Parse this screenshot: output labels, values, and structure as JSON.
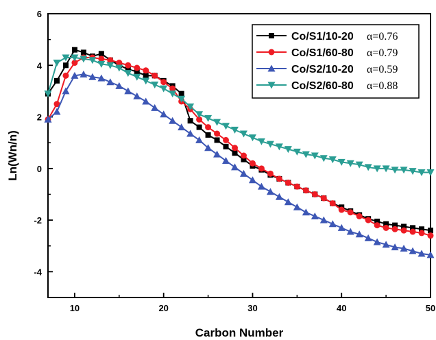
{
  "chart_data": {
    "type": "line",
    "title": "",
    "xlabel": "Carbon Number",
    "ylabel": "Ln(Wn/n)",
    "xlim": [
      7,
      50
    ],
    "ylim": [
      -5,
      6
    ],
    "xticks": [
      10,
      20,
      30,
      40,
      50
    ],
    "yticks": [
      -4,
      -2,
      0,
      2,
      4,
      6
    ],
    "grid": false,
    "legend_position": "top-right",
    "x": [
      7,
      8,
      9,
      10,
      11,
      12,
      13,
      14,
      15,
      16,
      17,
      18,
      19,
      20,
      21,
      22,
      23,
      24,
      25,
      26,
      27,
      28,
      29,
      30,
      31,
      32,
      33,
      34,
      35,
      36,
      37,
      38,
      39,
      40,
      41,
      42,
      43,
      44,
      45,
      46,
      47,
      48,
      49,
      50
    ],
    "series": [
      {
        "name": "Co/S1/10-20",
        "alpha": "α=0.76",
        "color": "#000000",
        "marker": "square",
        "values": [
          2.9,
          3.4,
          4.0,
          4.6,
          4.5,
          4.35,
          4.45,
          4.2,
          4.0,
          3.85,
          3.75,
          3.6,
          3.6,
          3.4,
          3.2,
          2.9,
          1.85,
          1.6,
          1.3,
          1.1,
          0.85,
          0.6,
          0.35,
          0.1,
          -0.05,
          -0.25,
          -0.4,
          -0.55,
          -0.7,
          -0.85,
          -1.0,
          -1.15,
          -1.35,
          -1.5,
          -1.65,
          -1.8,
          -1.95,
          -2.05,
          -2.15,
          -2.2,
          -2.25,
          -2.3,
          -2.35,
          -2.4
        ]
      },
      {
        "name": "Co/S1/60-80",
        "alpha": "α=0.79",
        "color": "#ee1c24",
        "marker": "circle",
        "values": [
          1.9,
          2.5,
          3.6,
          4.1,
          4.3,
          4.3,
          4.25,
          4.2,
          4.1,
          4.0,
          3.9,
          3.8,
          3.6,
          3.35,
          3.1,
          2.6,
          2.3,
          1.9,
          1.6,
          1.35,
          1.1,
          0.8,
          0.5,
          0.2,
          0.0,
          -0.2,
          -0.4,
          -0.55,
          -0.7,
          -0.85,
          -1.0,
          -1.15,
          -1.35,
          -1.6,
          -1.7,
          -1.85,
          -2.0,
          -2.2,
          -2.3,
          -2.35,
          -2.4,
          -2.45,
          -2.5,
          -2.6
        ]
      },
      {
        "name": "Co/S2/10-20",
        "alpha": "α=0.59",
        "color": "#3d57b5",
        "marker": "triangle-up",
        "values": [
          1.9,
          2.2,
          3.0,
          3.6,
          3.65,
          3.55,
          3.5,
          3.35,
          3.2,
          3.0,
          2.8,
          2.6,
          2.35,
          2.1,
          1.85,
          1.6,
          1.35,
          1.1,
          0.8,
          0.55,
          0.3,
          0.05,
          -0.2,
          -0.45,
          -0.7,
          -0.9,
          -1.1,
          -1.3,
          -1.5,
          -1.7,
          -1.85,
          -2.0,
          -2.15,
          -2.3,
          -2.45,
          -2.55,
          -2.7,
          -2.85,
          -2.95,
          -3.05,
          -3.1,
          -3.2,
          -3.3,
          -3.35
        ]
      },
      {
        "name": "Co/S2/60-80",
        "alpha": "α=0.88",
        "color": "#2b9e94",
        "marker": "triangle-down",
        "values": [
          2.9,
          4.1,
          4.3,
          4.3,
          4.25,
          4.2,
          4.05,
          4.0,
          3.9,
          3.7,
          3.55,
          3.4,
          3.25,
          3.1,
          2.9,
          2.7,
          2.4,
          2.1,
          1.95,
          1.8,
          1.65,
          1.5,
          1.35,
          1.2,
          1.05,
          0.95,
          0.85,
          0.75,
          0.65,
          0.55,
          0.5,
          0.4,
          0.35,
          0.25,
          0.2,
          0.15,
          0.05,
          0.0,
          0.0,
          -0.05,
          -0.05,
          -0.1,
          -0.15,
          -0.15
        ]
      }
    ]
  }
}
